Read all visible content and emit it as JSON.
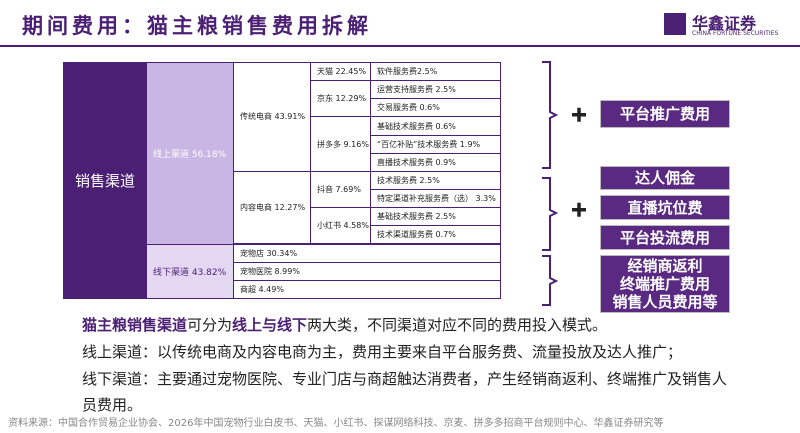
{
  "header": {
    "title": "期间费用：猫主粮销售费用拆解",
    "logo": {
      "name": "华鑫证券",
      "subtitle": "CHINA FORTUNE SECURITIES"
    }
  },
  "tree": {
    "root": "销售渠道",
    "online": {
      "label": "线上渠道 56.18%",
      "groups": [
        {
          "label": "传统电商 43.91%",
          "platforms": [
            {
              "label": "天猫 22.45%",
              "fees": [
                "软件服务费2.5%"
              ]
            },
            {
              "label": "京东 12.29%",
              "fees": [
                "运营支持服务费 2.5%",
                "交易服务费 0.6%"
              ]
            },
            {
              "label": "拼多多 9.16%",
              "fees": [
                "基础技术服务费 0.6%",
                "“百亿补贴”技术服务费 1.9%",
                "直播技术服务费 0.9%"
              ]
            }
          ]
        },
        {
          "label": "内容电商 12.27%",
          "platforms": [
            {
              "label": "抖音 7.69%",
              "fees": [
                "技术服务费 2.5%",
                "特定渠道补充服务费（选） 3.3%"
              ]
            },
            {
              "label": "小红书 4.58%",
              "fees": [
                "基础技术服务费 2.5%",
                "技术渠道服务费 0.7%"
              ]
            }
          ]
        }
      ]
    },
    "offline": {
      "label": "线下渠道 43.82%",
      "outlets": [
        "宠物店 30.34%",
        "宠物医院 8.99%",
        "商超 4.49%"
      ]
    }
  },
  "cost_groups": [
    [
      "平台推广费用"
    ],
    [
      "达人佣金",
      "直播坑位费",
      "平台投流费用"
    ],
    [
      "经销商返利",
      "终端推广费用",
      "销售人员费用等"
    ]
  ],
  "paragraphs": [
    [
      "猫主粮销售渠道",
      "可分为",
      "线上与线下",
      "两大类，不同渠道对应不同的费用投入模式。"
    ],
    [
      "线上渠道：以传统电商及内容电商为主，费用主要来自平台服务费、流量投放及达人推广；"
    ],
    [
      "线下渠道：主要通过宠物医院、专业门店与商超触达消费者，产生经销商返利、终端推广及销售人员费用。"
    ]
  ],
  "source": "资料来源：中国合作贸易企业协会、2026年中国宠物行业白皮书、天猫、小红书、探谋网络科技、京麦、拼多多招商平台规则中心、华鑫证券研究等"
}
